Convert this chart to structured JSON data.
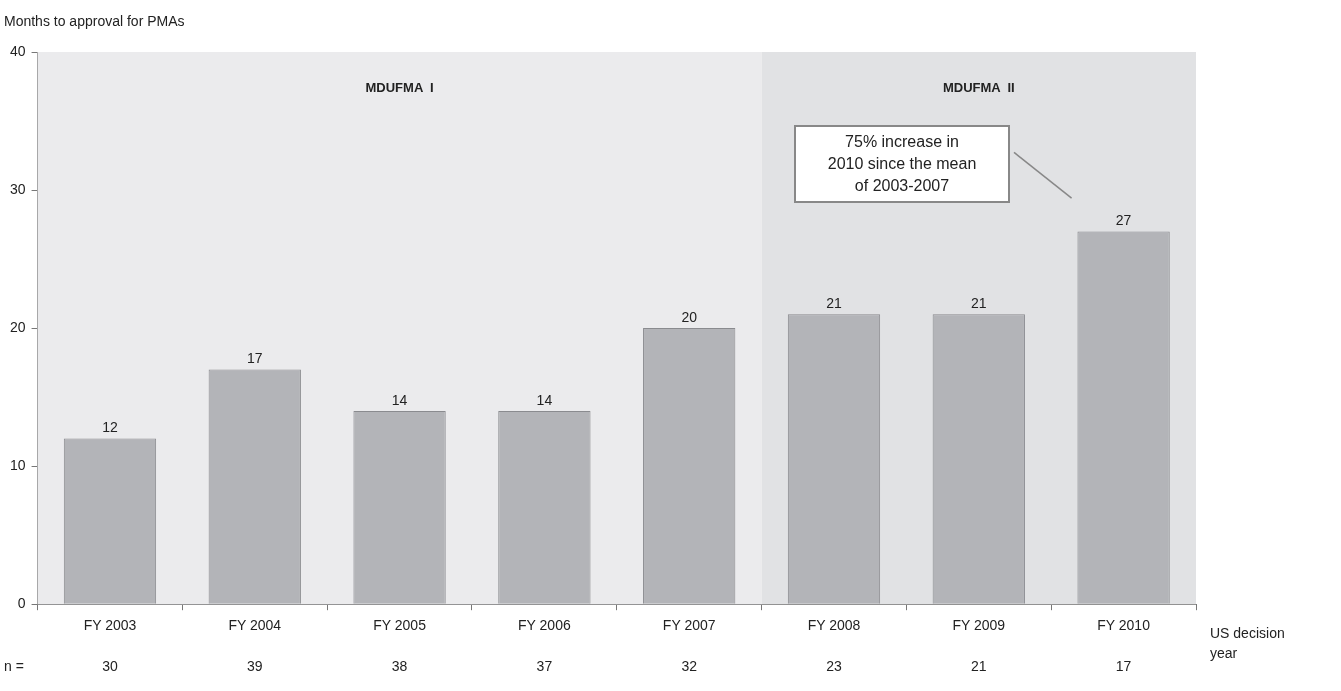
{
  "chart_data": {
    "type": "bar",
    "ylabel": "Months to approval for PMAs",
    "xlabel": "US decision year",
    "categories": [
      "FY 2003",
      "FY 2004",
      "FY 2005",
      "FY 2006",
      "FY 2007",
      "FY 2008",
      "FY 2009",
      "FY 2010"
    ],
    "values": [
      12,
      17,
      14,
      14,
      20,
      21,
      21,
      27
    ],
    "color": "#b3b4b8",
    "data_labels": true,
    "ylim": [
      0,
      40
    ],
    "yticks": [
      0,
      10,
      20,
      30,
      40
    ],
    "grid": false,
    "legend": false,
    "bands": [
      {
        "axis": "x",
        "from": "FY 2003",
        "to": "FY 2007",
        "label": "MDUFMA  I",
        "color": "#ebebed"
      },
      {
        "axis": "x",
        "from": "FY 2008",
        "to": "FY 2010",
        "label": "MDUFMA  II",
        "color": "#e1e2e4"
      }
    ],
    "annotations": [
      "75% increase in 2010 since the mean of 2003-2007",
      "n =",
      "30",
      "39",
      "38",
      "37",
      "32",
      "23",
      "21",
      "17"
    ]
  }
}
